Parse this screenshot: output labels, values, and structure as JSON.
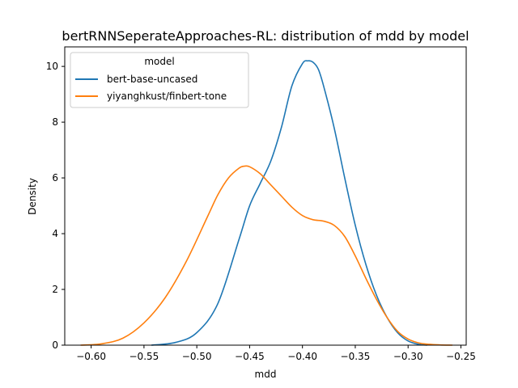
{
  "chart_data": {
    "type": "line",
    "title": "bertRNNSeperateApproaches-RL: distribution of mdd by model",
    "xlabel": "mdd",
    "ylabel": "Density",
    "xlim": [
      -0.625,
      -0.245
    ],
    "ylim": [
      0,
      10.7
    ],
    "xticks": [
      -0.6,
      -0.55,
      -0.5,
      -0.45,
      -0.4,
      -0.35,
      -0.3,
      -0.25
    ],
    "xtick_labels": [
      "−0.60",
      "−0.55",
      "−0.50",
      "−0.45",
      "−0.40",
      "−0.35",
      "−0.30",
      "−0.25"
    ],
    "yticks": [
      0,
      2,
      4,
      6,
      8,
      10
    ],
    "ytick_labels": [
      "0",
      "2",
      "4",
      "6",
      "8",
      "10"
    ],
    "grid": false,
    "legend": {
      "title": "model",
      "placement": "top-left"
    },
    "series": [
      {
        "name": "bert-base-uncased",
        "color": "#1f77b4",
        "x": [
          -0.543,
          -0.52,
          -0.5,
          -0.48,
          -0.46,
          -0.45,
          -0.44,
          -0.43,
          -0.42,
          -0.41,
          -0.4,
          -0.395,
          -0.39,
          -0.385,
          -0.38,
          -0.37,
          -0.36,
          -0.35,
          -0.34,
          -0.33,
          -0.32,
          -0.31,
          -0.3,
          -0.29,
          -0.282
        ],
        "y": [
          0.0,
          0.1,
          0.45,
          1.5,
          3.8,
          5.0,
          5.8,
          6.6,
          7.8,
          9.3,
          10.1,
          10.2,
          10.15,
          9.9,
          9.3,
          7.8,
          6.0,
          4.3,
          2.9,
          1.8,
          1.0,
          0.45,
          0.15,
          0.03,
          0.0
        ]
      },
      {
        "name": "yiyanghkust/finbert-tone",
        "color": "#ff7f0e",
        "x": [
          -0.61,
          -0.59,
          -0.57,
          -0.55,
          -0.53,
          -0.51,
          -0.49,
          -0.48,
          -0.47,
          -0.46,
          -0.455,
          -0.45,
          -0.44,
          -0.43,
          -0.42,
          -0.41,
          -0.4,
          -0.39,
          -0.38,
          -0.37,
          -0.36,
          -0.35,
          -0.34,
          -0.33,
          -0.32,
          -0.31,
          -0.3,
          -0.29,
          -0.28,
          -0.27,
          -0.258
        ],
        "y": [
          0.0,
          0.05,
          0.25,
          0.8,
          1.7,
          3.0,
          4.6,
          5.4,
          6.0,
          6.35,
          6.42,
          6.4,
          6.15,
          5.75,
          5.35,
          4.95,
          4.65,
          4.5,
          4.45,
          4.3,
          3.9,
          3.2,
          2.4,
          1.65,
          1.0,
          0.5,
          0.22,
          0.08,
          0.03,
          0.01,
          0.0
        ]
      }
    ]
  }
}
